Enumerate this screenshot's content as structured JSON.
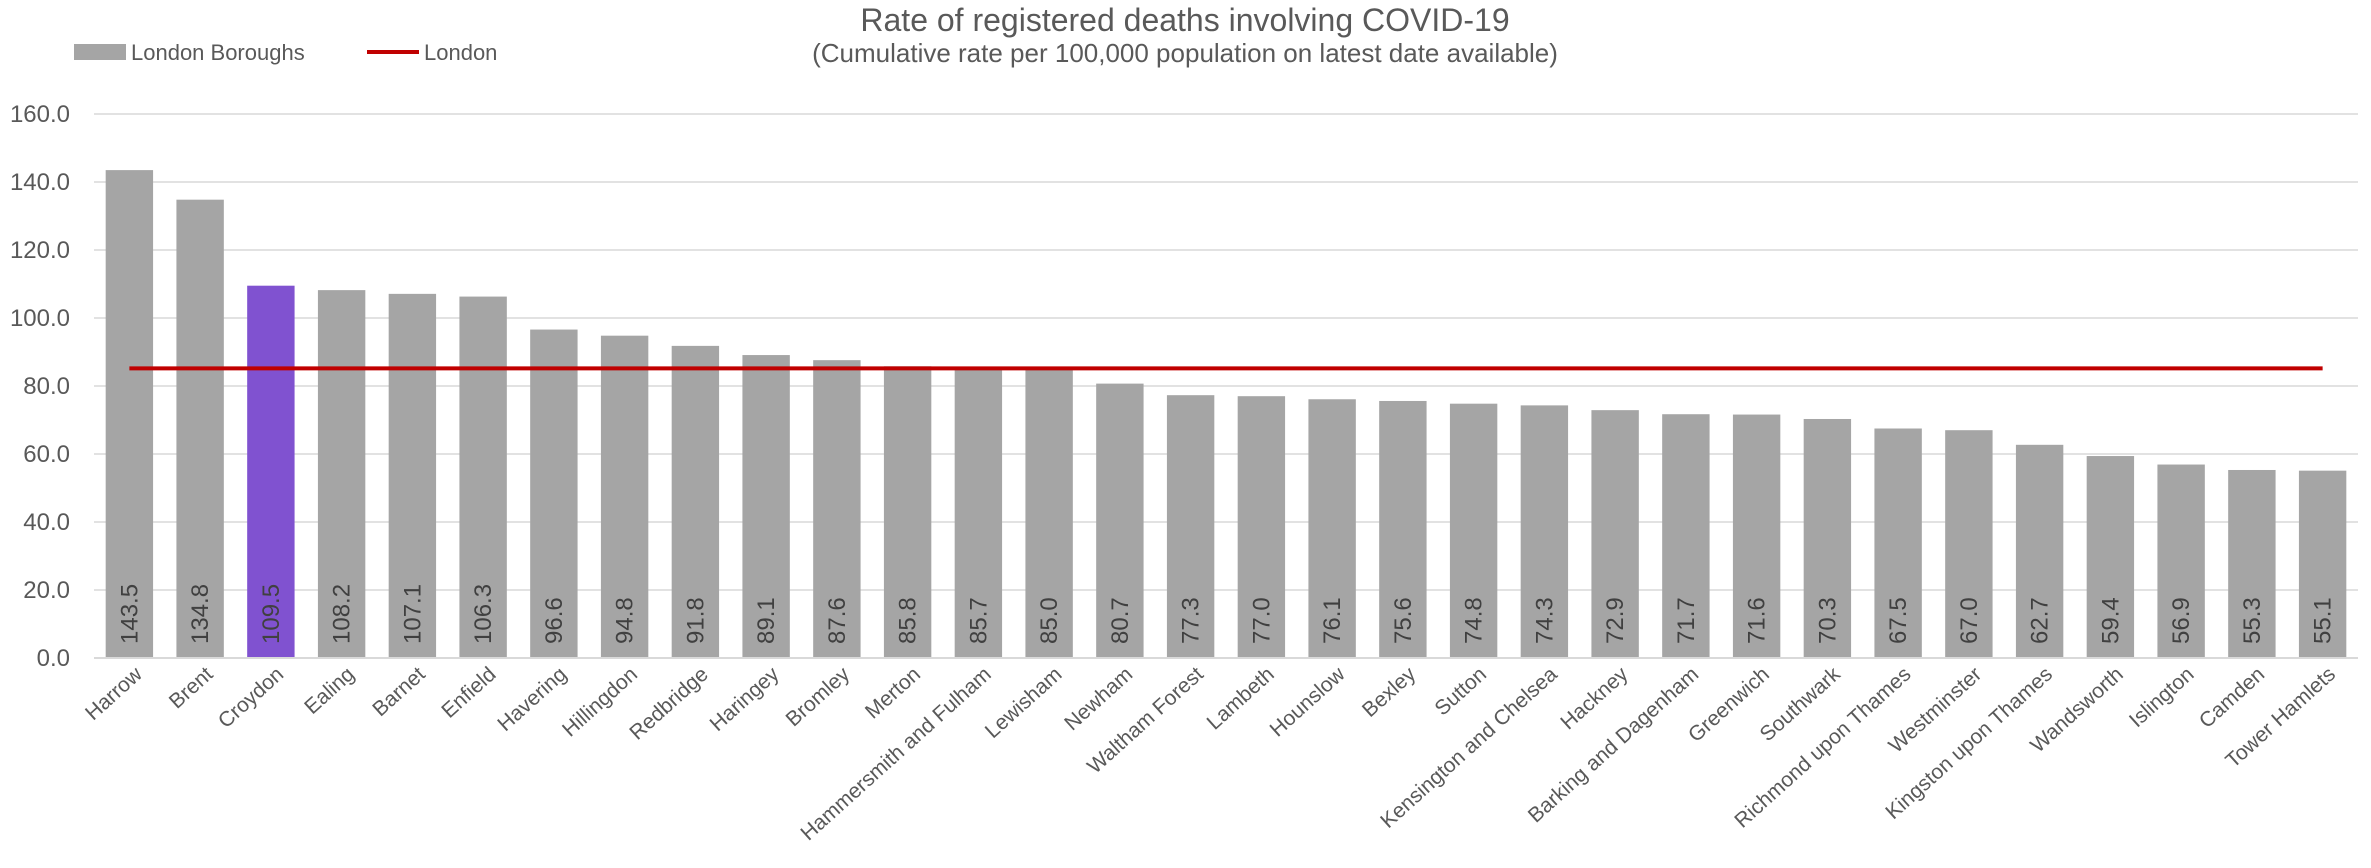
{
  "chart_data": {
    "type": "bar",
    "title": "Rate of registered deaths involving COVID-19",
    "subtitle": "(Cumulative rate per 100,000 population on latest date available)",
    "legend": {
      "placement": "top-left",
      "entries": [
        "London Boroughs",
        "London"
      ]
    },
    "categories": [
      "Harrow",
      "Brent",
      "Croydon",
      "Ealing",
      "Barnet",
      "Enfield",
      "Havering",
      "Hillingdon",
      "Redbridge",
      "Haringey",
      "Bromley",
      "Merton",
      "Hammersmith and Fulham",
      "Lewisham",
      "Newham",
      "Waltham Forest",
      "Lambeth",
      "Hounslow",
      "Bexley",
      "Sutton",
      "Kensington and Chelsea",
      "Hackney",
      "Barking and Dagenham",
      "Greenwich",
      "Southwark",
      "Richmond upon Thames",
      "Westminster",
      "Kingston upon Thames",
      "Wandsworth",
      "Islington",
      "Camden",
      "Tower Hamlets"
    ],
    "series": [
      {
        "name": "London Boroughs",
        "values": [
          143.5,
          134.8,
          109.5,
          108.2,
          107.1,
          106.3,
          96.6,
          94.8,
          91.8,
          89.1,
          87.6,
          85.8,
          85.7,
          85.0,
          80.7,
          77.3,
          77.0,
          76.1,
          75.6,
          74.8,
          74.3,
          72.9,
          71.7,
          71.6,
          70.3,
          67.5,
          67.0,
          62.7,
          59.4,
          56.9,
          55.3,
          55.1
        ],
        "data_labels": [
          "143.5",
          "134.8",
          "109.5",
          "108.2",
          "107.1",
          "106.3",
          "96.6",
          "94.8",
          "91.8",
          "89.1",
          "87.6",
          "85.8",
          "85.7",
          "85.0",
          "80.7",
          "77.3",
          "77.0",
          "76.1",
          "75.6",
          "74.8",
          "74.3",
          "72.9",
          "71.7",
          "71.6",
          "70.3",
          "67.5",
          "67.0",
          "62.7",
          "59.4",
          "56.9",
          "55.3",
          "55.1"
        ]
      },
      {
        "name": "London",
        "type": "line",
        "value": 85.2
      }
    ],
    "highlight_category": "Croydon",
    "ylim": [
      0,
      160
    ],
    "yticks": [
      "0.0",
      "20.0",
      "40.0",
      "60.0",
      "80.0",
      "100.0",
      "120.0",
      "140.0",
      "160.0"
    ],
    "grid": true,
    "colors": {
      "bar": "#a5a5a5",
      "highlight": "#8052d0",
      "line": "#c00000",
      "grid": "#d9d9d9",
      "text": "#595959"
    }
  }
}
